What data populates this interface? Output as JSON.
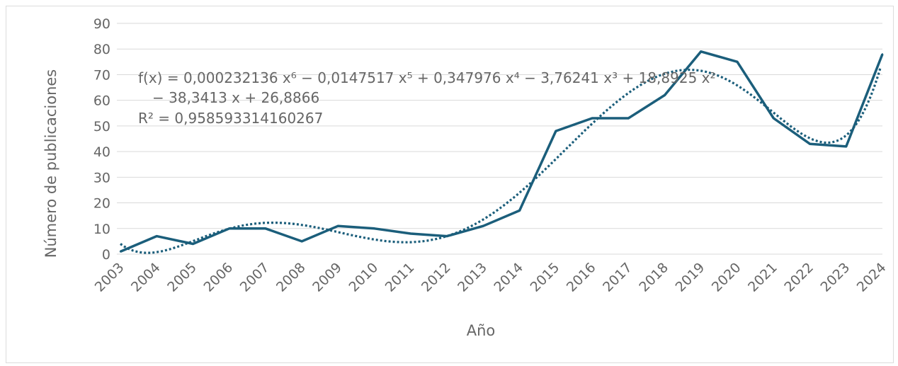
{
  "chart_data": {
    "type": "line",
    "title": "",
    "xlabel": "Año",
    "ylabel": "Número de publicaciones",
    "categories": [
      "2003",
      "2004",
      "2005",
      "2006",
      "2007",
      "2008",
      "2009",
      "2010",
      "2011",
      "2012",
      "2013",
      "2014",
      "2015",
      "2016",
      "2017",
      "2018",
      "2019",
      "2020",
      "2021",
      "2022",
      "2023",
      "2024"
    ],
    "ylim": [
      0,
      90
    ],
    "yticks": [
      "0",
      "10",
      "20",
      "30",
      "40",
      "50",
      "60",
      "70",
      "80",
      "90"
    ],
    "grid": true,
    "legend": "none",
    "series": [
      {
        "values": [
          1,
          7,
          4,
          10,
          10,
          5,
          11,
          10,
          8,
          7,
          11,
          17,
          48,
          53,
          53,
          62,
          79,
          75,
          53,
          43,
          42,
          78
        ],
        "color": "#1b5e7b",
        "style": "solid"
      }
    ],
    "trendline": {
      "type": "polynomial",
      "order": 6,
      "coefficients": [
        0.000232136,
        -0.0147517,
        0.347976,
        -3.76241,
        18.8925,
        -38.3413,
        26.8866
      ],
      "color": "#1b5e7b",
      "style": "dotted"
    },
    "equation_lines": [
      "f(x) = 0,000232136 x⁶ − 0,0147517 x⁵ + 0,347976 x⁴ − 3,76241 x³ + 18,8925 x²",
      "− 38,3413 x + 26,8866",
      "R² = 0,958593314160267"
    ]
  }
}
